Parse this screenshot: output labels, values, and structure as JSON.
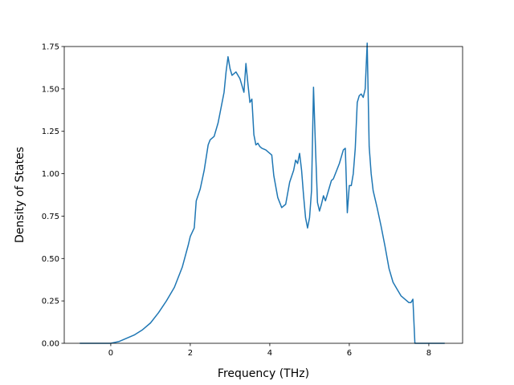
{
  "chart_data": {
    "type": "line",
    "title": "",
    "xlabel": "Frequency (THz)",
    "ylabel": "Density of States",
    "xlim": [
      -1.17,
      8.85
    ],
    "ylim": [
      0.0,
      1.75
    ],
    "xticks": [
      0,
      2,
      4,
      6,
      8
    ],
    "yticks": [
      0.0,
      0.25,
      0.5,
      0.75,
      1.0,
      1.25,
      1.5,
      1.75
    ],
    "xtick_labels": [
      "0",
      "2",
      "4",
      "6",
      "8"
    ],
    "ytick_labels": [
      "0.00",
      "0.25",
      "0.50",
      "0.75",
      "1.00",
      "1.25",
      "1.50",
      "1.75"
    ],
    "grid": false,
    "line_color": "#1f77b4",
    "series": [
      {
        "x": [
          -0.78,
          -0.2,
          0.0,
          0.2,
          0.4,
          0.6,
          0.8,
          1.0,
          1.2,
          1.4,
          1.6,
          1.8,
          1.95,
          2.0,
          2.1,
          2.15,
          2.25,
          2.35,
          2.45,
          2.5,
          2.6,
          2.7,
          2.75,
          2.8,
          2.85,
          2.9,
          2.95,
          3.0,
          3.05,
          3.15,
          3.25,
          3.35,
          3.4,
          3.45,
          3.5,
          3.55,
          3.6,
          3.65,
          3.7,
          3.75,
          3.8,
          3.9,
          4.0,
          4.05,
          4.1,
          4.2,
          4.3,
          4.4,
          4.5,
          4.6,
          4.65,
          4.7,
          4.75,
          4.8,
          4.85,
          4.9,
          4.95,
          5.0,
          5.05,
          5.1,
          5.15,
          5.2,
          5.25,
          5.3,
          5.35,
          5.4,
          5.5,
          5.55,
          5.6,
          5.7,
          5.75,
          5.8,
          5.85,
          5.9,
          5.95,
          6.0,
          6.05,
          6.1,
          6.15,
          6.2,
          6.25,
          6.3,
          6.35,
          6.4,
          6.45,
          6.5,
          6.55,
          6.6,
          6.7,
          6.8,
          6.9,
          7.0,
          7.1,
          7.2,
          7.3,
          7.4,
          7.5,
          7.55,
          7.6,
          7.65,
          7.7,
          8.0,
          8.4
        ],
        "y": [
          0.0,
          0.0,
          0.0,
          0.01,
          0.03,
          0.05,
          0.08,
          0.12,
          0.18,
          0.25,
          0.33,
          0.45,
          0.58,
          0.63,
          0.68,
          0.84,
          0.91,
          1.02,
          1.17,
          1.2,
          1.22,
          1.3,
          1.36,
          1.42,
          1.48,
          1.6,
          1.69,
          1.62,
          1.58,
          1.6,
          1.56,
          1.48,
          1.65,
          1.53,
          1.42,
          1.44,
          1.23,
          1.17,
          1.18,
          1.16,
          1.15,
          1.14,
          1.12,
          1.11,
          0.99,
          0.86,
          0.8,
          0.82,
          0.95,
          1.02,
          1.08,
          1.06,
          1.12,
          1.02,
          0.87,
          0.74,
          0.68,
          0.74,
          0.9,
          1.51,
          1.15,
          0.83,
          0.78,
          0.82,
          0.87,
          0.84,
          0.92,
          0.96,
          0.97,
          1.03,
          1.06,
          1.1,
          1.14,
          1.15,
          0.77,
          0.93,
          0.93,
          1.0,
          1.15,
          1.42,
          1.46,
          1.47,
          1.45,
          1.5,
          1.77,
          1.16,
          1.0,
          0.9,
          0.8,
          0.69,
          0.57,
          0.44,
          0.36,
          0.32,
          0.28,
          0.26,
          0.24,
          0.24,
          0.26,
          0.0,
          0.0,
          0.0,
          0.0
        ]
      }
    ]
  }
}
